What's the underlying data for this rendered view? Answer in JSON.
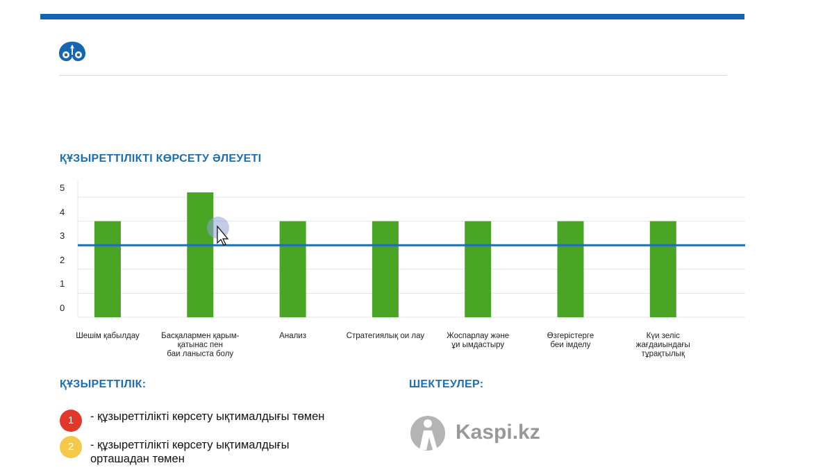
{
  "title": "ҚҰЗЫРЕТТІЛІКТІ КӨРСЕТУ ӘЛЕУЕТІ",
  "colors": {
    "accent": "#1565b0",
    "bar": "#4aa524",
    "threshold": "#1f6db5",
    "red": "#e0392b",
    "yellow": "#f4c94a"
  },
  "chart_data": {
    "type": "bar",
    "title": "ҚҰЗЫРЕТТІЛІКТІ КӨРСЕТУ ӘЛЕУЕТІ",
    "categories": [
      [
        "Шешім қабылдау"
      ],
      [
        "Басқалармен қарым-",
        "қатынас пен",
        "баи ланыста болу"
      ],
      [
        "Анализ"
      ],
      [
        "Стратегиялық ои лау"
      ],
      [
        "Жоспарлау және",
        "ұи ымдастыру"
      ],
      [
        "Өзгерістерге",
        "беи імделу"
      ],
      [
        "Күи зеліс",
        "жағдаиындағы",
        "тұрақтылық"
      ]
    ],
    "values": [
      4,
      5.2,
      4,
      4,
      4,
      4,
      4
    ],
    "threshold": 3,
    "yticks": [
      "0",
      "1",
      "2",
      "3",
      "4",
      "5"
    ],
    "ylim": [
      0,
      5
    ],
    "grid": true
  },
  "competence": {
    "heading": "ҚҰЗЫРЕТТІЛІК:",
    "items": [
      {
        "num": "1",
        "text": "- құзыреттілікті көрсету ықтималдығы төмен"
      },
      {
        "num": "2",
        "text": "- құзыреттілікті көрсету ықтималдығы",
        "text2": "орташадан төмен"
      }
    ]
  },
  "limits": {
    "heading": "ШЕКТЕУЛЕР:"
  },
  "watermark": "Kaspi.kz"
}
